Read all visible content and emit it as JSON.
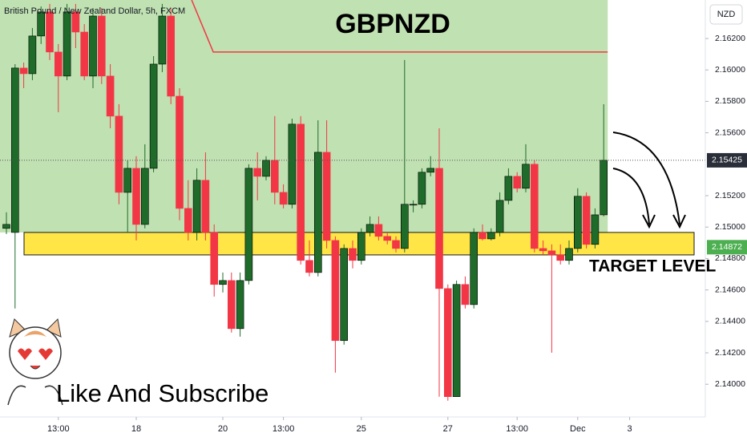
{
  "chart_data": {
    "type": "candlestick",
    "title": "GBPNZD",
    "subtitle": "British Pound / New Zealand Dollar, 5h, FXCM",
    "currency": "NZD",
    "up_color": "#1e6b2a",
    "down_color": "#f23645",
    "zone_color": "#ffe433",
    "area_color": "#b5dca4",
    "ylim": [
      2.13792,
      2.16445
    ],
    "yticks": [
      {
        "value": 2.162,
        "label": "2.16200"
      },
      {
        "value": 2.16,
        "label": "2.16000"
      },
      {
        "value": 2.158,
        "label": "2.15800"
      },
      {
        "value": 2.156,
        "label": "2.15600"
      },
      {
        "value": 2.152,
        "label": "2.15200"
      },
      {
        "value": 2.15,
        "label": "2.15000"
      },
      {
        "value": 2.148,
        "label": "2.14800"
      },
      {
        "value": 2.146,
        "label": "2.14600"
      },
      {
        "value": 2.144,
        "label": "2.14400"
      },
      {
        "value": 2.142,
        "label": "2.14200"
      },
      {
        "value": 2.14,
        "label": "2.14000"
      }
    ],
    "categories": [
      null,
      null,
      null,
      null,
      null,
      null,
      "13:00",
      null,
      null,
      null,
      null,
      null,
      null,
      null,
      null,
      "18",
      null,
      null,
      null,
      null,
      null,
      null,
      null,
      null,
      null,
      "20",
      null,
      null,
      null,
      null,
      null,
      null,
      "13:00",
      null,
      null,
      null,
      null,
      null,
      null,
      null,
      null,
      "25",
      null,
      null,
      null,
      null,
      null,
      null,
      null,
      null,
      null,
      "27",
      null,
      null,
      null,
      null,
      null,
      null,
      null,
      "13:00",
      null,
      null,
      null,
      null,
      null,
      null,
      "Dec",
      null,
      null,
      null,
      null,
      null,
      "3",
      null
    ],
    "open": [
      2.14992,
      2.14966,
      2.16012,
      2.15976,
      2.16216,
      2.16369,
      2.16114,
      2.15961,
      2.16369,
      2.16241,
      2.15961,
      2.16343,
      2.15961,
      2.15706,
      2.15221,
      2.15374,
      2.15017,
      2.15374,
      2.16037,
      2.16343,
      2.15833,
      2.15119,
      2.14966,
      2.15298,
      2.14966,
      2.14635,
      2.1466,
      2.14354,
      2.1466,
      2.15374,
      2.15323,
      2.15425,
      2.15221,
      2.15145,
      2.15655,
      2.14788,
      2.14711,
      2.15476,
      2.14915,
      2.14278,
      2.14864,
      2.14788,
      2.14966,
      2.15017,
      2.14941,
      2.14915,
      2.14864,
      2.15145,
      2.15145,
      2.15349,
      2.15374,
      2.14609,
      2.13921,
      2.14635,
      2.14507,
      2.14966,
      2.14925,
      2.14966,
      2.1517,
      2.15323,
      2.15247,
      2.154,
      2.14864,
      2.14849,
      2.14823,
      2.14788,
      2.14864,
      2.15196,
      2.1489,
      2.15078,
      null,
      null,
      null,
      null
    ],
    "high": [
      2.15094,
      2.16037,
      2.16047,
      2.16267,
      2.16404,
      2.1642,
      2.16165,
      2.1642,
      2.1642,
      2.16292,
      2.16394,
      2.16394,
      2.16037,
      2.15782,
      2.15425,
      2.15451,
      2.15527,
      2.16088,
      2.1642,
      2.16394,
      2.15884,
      2.15298,
      2.15374,
      2.15476,
      2.15017,
      2.14711,
      2.14711,
      2.14711,
      2.154,
      2.15476,
      2.15451,
      2.15706,
      2.15272,
      2.1569,
      2.15706,
      2.14915,
      2.1568,
      2.1568,
      2.14941,
      2.1489,
      2.14915,
      2.14992,
      2.15068,
      2.15068,
      2.14966,
      2.14941,
      2.16063,
      2.1517,
      2.15374,
      2.15451,
      2.15629,
      2.14635,
      2.1466,
      2.14686,
      2.14992,
      2.15017,
      2.14992,
      2.15221,
      2.15374,
      2.15349,
      2.15527,
      2.15425,
      2.14915,
      2.1489,
      2.1489,
      2.14915,
      2.15247,
      2.15221,
      2.15119,
      2.15782,
      null,
      null,
      null,
      null
    ],
    "low": [
      2.14956,
      2.14482,
      2.15884,
      2.15935,
      2.16165,
      2.16063,
      2.15731,
      2.15935,
      2.16139,
      2.15935,
      2.15884,
      2.1591,
      2.15629,
      2.15145,
      2.14966,
      2.14915,
      2.14992,
      2.15349,
      2.15986,
      2.15782,
      2.15043,
      2.14915,
      2.14915,
      2.14915,
      2.14558,
      2.14584,
      2.14329,
      2.14303,
      2.14635,
      2.1517,
      2.15298,
      2.15145,
      2.15119,
      2.15119,
      2.14762,
      2.14686,
      2.14686,
      2.14864,
      2.14074,
      2.14252,
      2.14737,
      2.14762,
      2.14941,
      2.14915,
      2.1489,
      2.14839,
      2.14839,
      2.15094,
      2.15119,
      2.15323,
      2.13921,
      2.13895,
      2.13921,
      2.14482,
      2.14482,
      2.14915,
      2.14915,
      2.14941,
      2.15145,
      2.15221,
      2.15221,
      2.14839,
      2.14823,
      2.14201,
      2.14762,
      2.14762,
      2.14839,
      2.14864,
      2.14864,
      2.15068,
      null,
      null,
      null,
      null
    ],
    "close": [
      2.15017,
      2.16012,
      2.15976,
      2.16216,
      2.16369,
      2.16114,
      2.15961,
      2.16369,
      2.16241,
      2.15961,
      2.16343,
      2.15961,
      2.15706,
      2.15221,
      2.15374,
      2.15017,
      2.15374,
      2.16037,
      2.16343,
      2.15833,
      2.15119,
      2.14966,
      2.15298,
      2.14966,
      2.14635,
      2.1466,
      2.14354,
      2.1466,
      2.15374,
      2.15323,
      2.15425,
      2.15221,
      2.15145,
      2.15655,
      2.14788,
      2.14711,
      2.15476,
      2.14915,
      2.14278,
      2.14864,
      2.14788,
      2.14966,
      2.15017,
      2.14941,
      2.14915,
      2.14864,
      2.15145,
      2.15145,
      2.15349,
      2.15374,
      2.14609,
      2.13921,
      2.14635,
      2.14507,
      2.14966,
      2.14925,
      2.14966,
      2.1517,
      2.15323,
      2.15247,
      2.154,
      2.14864,
      2.14849,
      2.14823,
      2.14788,
      2.14864,
      2.15196,
      2.1489,
      2.15078,
      2.15425,
      null,
      null,
      null,
      null
    ],
    "last_price": 2.15425,
    "resistance": 2.16114,
    "target_zone": [
      2.14823,
      2.14966
    ],
    "target_price": 2.14872,
    "target_label": "TARGET LEVEL",
    "footer": "Like And Subscribe"
  }
}
